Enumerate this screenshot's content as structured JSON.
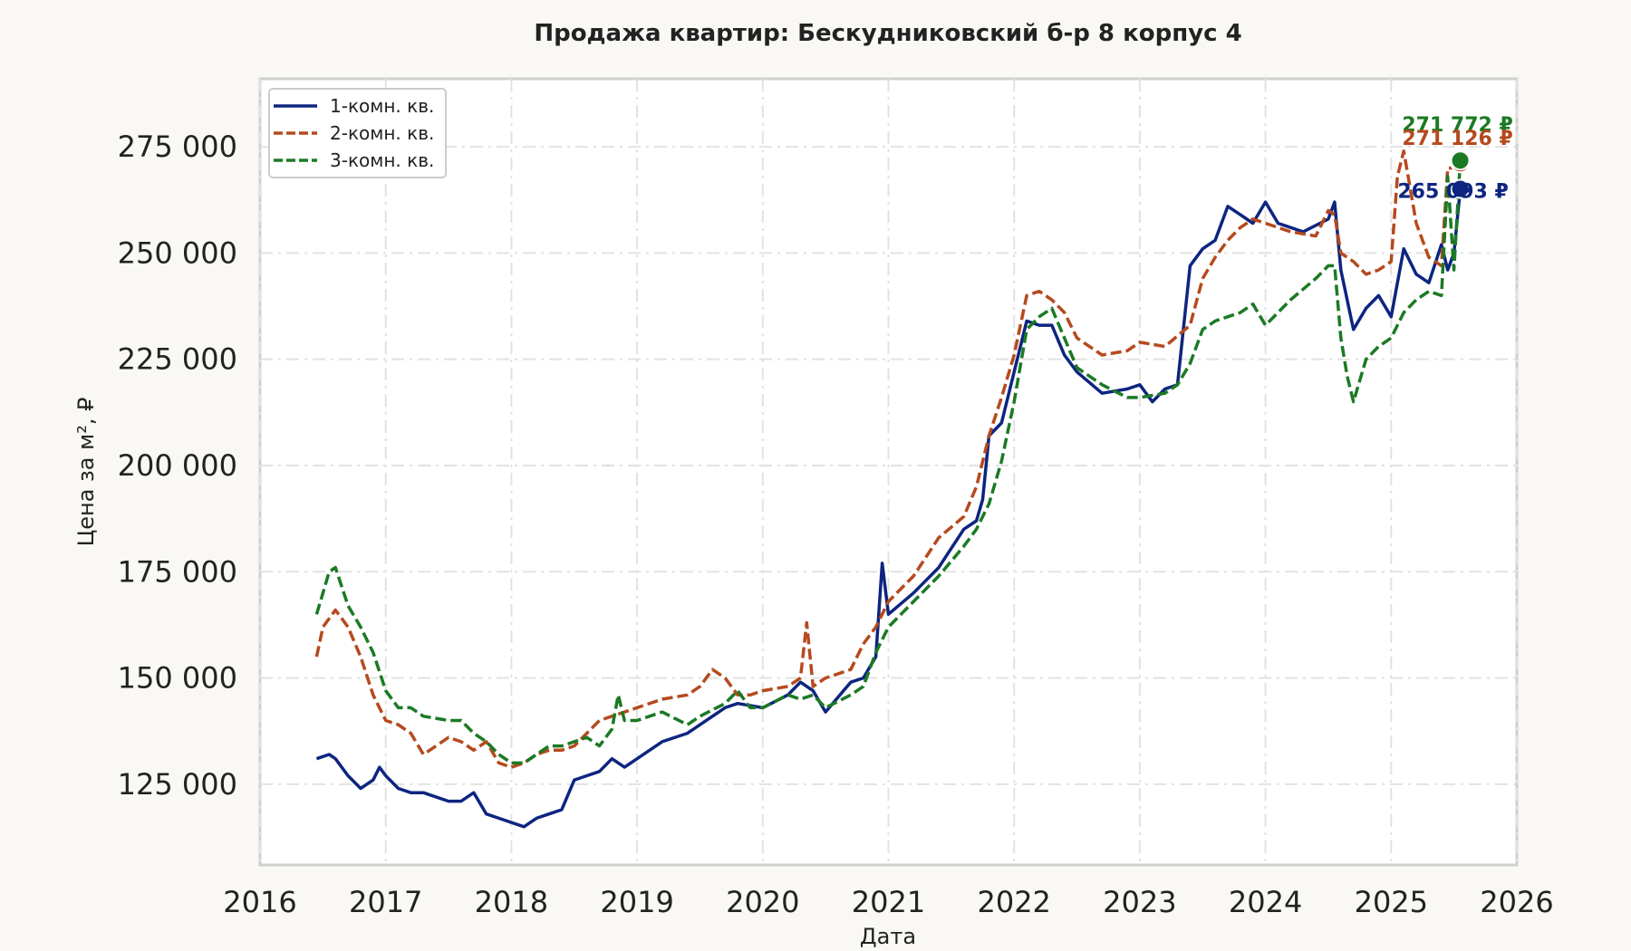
{
  "chart_data": {
    "type": "line",
    "title": "Продажа квартир: Бескудниковский б-р 8 корпус 4",
    "xlabel": "Дата",
    "ylabel": "Цена за м², ₽",
    "xlim": [
      2016,
      2026
    ],
    "ylim": [
      106000,
      291000
    ],
    "x_ticks": [
      "2016",
      "2017",
      "2018",
      "2019",
      "2020",
      "2021",
      "2022",
      "2023",
      "2024",
      "2025",
      "2026"
    ],
    "y_ticks": [
      {
        "value": 125000,
        "label": "125 000"
      },
      {
        "value": 150000,
        "label": "150 000"
      },
      {
        "value": 175000,
        "label": "175 000"
      },
      {
        "value": 200000,
        "label": "200 000"
      },
      {
        "value": 225000,
        "label": "225 000"
      },
      {
        "value": 250000,
        "label": "250 000"
      },
      {
        "value": 275000,
        "label": "275 000"
      }
    ],
    "grid": true,
    "legend_position": "top-left",
    "series": [
      {
        "name": "1-комн. кв.",
        "color": "#0d2580",
        "dash": "solid",
        "x": [
          2016.45,
          2016.55,
          2016.6,
          2016.7,
          2016.8,
          2016.9,
          2016.95,
          2017.0,
          2017.1,
          2017.2,
          2017.3,
          2017.5,
          2017.6,
          2017.7,
          2017.8,
          2017.9,
          2018.0,
          2018.1,
          2018.2,
          2018.3,
          2018.4,
          2018.5,
          2018.6,
          2018.7,
          2018.8,
          2018.9,
          2019.0,
          2019.2,
          2019.4,
          2019.5,
          2019.7,
          2019.8,
          2020.0,
          2020.2,
          2020.3,
          2020.4,
          2020.5,
          2020.7,
          2020.8,
          2020.9,
          2020.95,
          2021.0,
          2021.2,
          2021.4,
          2021.6,
          2021.7,
          2021.75,
          2021.8,
          2021.9,
          2022.0,
          2022.1,
          2022.2,
          2022.3,
          2022.4,
          2022.5,
          2022.7,
          2022.9,
          2023.0,
          2023.1,
          2023.2,
          2023.3,
          2023.4,
          2023.5,
          2023.6,
          2023.7,
          2023.8,
          2023.9,
          2024.0,
          2024.1,
          2024.3,
          2024.5,
          2024.55,
          2024.6,
          2024.7,
          2024.8,
          2024.9,
          2025.0,
          2025.1,
          2025.2,
          2025.3,
          2025.4,
          2025.45,
          2025.5,
          2025.55
        ],
        "y": [
          131000,
          132000,
          131000,
          127000,
          124000,
          126000,
          129000,
          127000,
          124000,
          123000,
          123000,
          121000,
          121000,
          123000,
          118000,
          117000,
          116000,
          115000,
          117000,
          118000,
          119000,
          126000,
          127000,
          128000,
          131000,
          129000,
          131000,
          135000,
          137000,
          139000,
          143000,
          144000,
          143000,
          146000,
          149000,
          147000,
          142000,
          149000,
          150000,
          155000,
          177000,
          165000,
          170000,
          176000,
          185000,
          187000,
          192000,
          207000,
          210000,
          222000,
          234000,
          233000,
          233000,
          226000,
          222000,
          217000,
          218000,
          219000,
          215000,
          218000,
          219000,
          247000,
          251000,
          253000,
          261000,
          259000,
          257000,
          262000,
          257000,
          255000,
          258000,
          262000,
          246000,
          232000,
          237000,
          240000,
          235000,
          251000,
          245000,
          243000,
          252000,
          246000,
          250000,
          265093
        ]
      },
      {
        "name": "2-комн. кв.",
        "color": "#b54a1e",
        "dash": "dashed",
        "x": [
          2016.45,
          2016.5,
          2016.6,
          2016.7,
          2016.8,
          2016.9,
          2017.0,
          2017.1,
          2017.2,
          2017.3,
          2017.4,
          2017.5,
          2017.6,
          2017.7,
          2017.8,
          2017.9,
          2018.0,
          2018.1,
          2018.2,
          2018.3,
          2018.4,
          2018.5,
          2018.6,
          2018.7,
          2018.8,
          2018.9,
          2019.0,
          2019.2,
          2019.4,
          2019.5,
          2019.6,
          2019.7,
          2019.8,
          2019.9,
          2020.0,
          2020.2,
          2020.3,
          2020.35,
          2020.4,
          2020.5,
          2020.7,
          2020.8,
          2020.9,
          2021.0,
          2021.2,
          2021.4,
          2021.6,
          2021.7,
          2021.8,
          2021.9,
          2022.0,
          2022.1,
          2022.2,
          2022.3,
          2022.4,
          2022.5,
          2022.7,
          2022.9,
          2023.0,
          2023.2,
          2023.4,
          2023.5,
          2023.6,
          2023.7,
          2023.8,
          2023.9,
          2024.0,
          2024.2,
          2024.4,
          2024.5,
          2024.55,
          2024.6,
          2024.7,
          2024.8,
          2024.9,
          2025.0,
          2025.05,
          2025.1,
          2025.2,
          2025.3,
          2025.4,
          2025.45,
          2025.5,
          2025.55
        ],
        "y": [
          155000,
          162000,
          166000,
          162000,
          155000,
          146000,
          140000,
          139000,
          137000,
          132000,
          134000,
          136000,
          135000,
          133000,
          135000,
          130000,
          129000,
          130000,
          132000,
          133000,
          133000,
          134000,
          137000,
          140000,
          141000,
          142000,
          143000,
          145000,
          146000,
          148000,
          152000,
          150000,
          146000,
          146000,
          147000,
          148000,
          150000,
          163000,
          148000,
          150000,
          152000,
          158000,
          162000,
          168000,
          174000,
          183000,
          188000,
          195000,
          207000,
          216000,
          226000,
          240000,
          241000,
          239000,
          236000,
          230000,
          226000,
          227000,
          229000,
          228000,
          233000,
          244000,
          249000,
          253000,
          256000,
          258000,
          257000,
          255000,
          254000,
          260000,
          259000,
          250000,
          248000,
          245000,
          246000,
          248000,
          268000,
          274000,
          257000,
          249000,
          247000,
          270000,
          270000,
          271126
        ]
      },
      {
        "name": "3-комн. кв.",
        "color": "#1b7a24",
        "dash": "dashed",
        "x": [
          2016.45,
          2016.5,
          2016.55,
          2016.6,
          2016.7,
          2016.8,
          2016.9,
          2017.0,
          2017.1,
          2017.2,
          2017.3,
          2017.5,
          2017.6,
          2017.7,
          2017.8,
          2017.9,
          2018.0,
          2018.1,
          2018.2,
          2018.3,
          2018.4,
          2018.5,
          2018.6,
          2018.7,
          2018.8,
          2018.85,
          2018.9,
          2019.0,
          2019.2,
          2019.4,
          2019.5,
          2019.7,
          2019.8,
          2019.9,
          2020.0,
          2020.2,
          2020.3,
          2020.4,
          2020.5,
          2020.7,
          2020.8,
          2020.9,
          2021.0,
          2021.2,
          2021.4,
          2021.6,
          2021.7,
          2021.8,
          2021.9,
          2022.0,
          2022.1,
          2022.2,
          2022.3,
          2022.4,
          2022.5,
          2022.7,
          2022.9,
          2023.0,
          2023.2,
          2023.3,
          2023.4,
          2023.5,
          2023.6,
          2023.8,
          2023.9,
          2024.0,
          2024.2,
          2024.4,
          2024.5,
          2024.55,
          2024.6,
          2024.65,
          2024.7,
          2024.8,
          2024.9,
          2025.0,
          2025.1,
          2025.2,
          2025.3,
          2025.4,
          2025.45,
          2025.5,
          2025.55
        ],
        "y": [
          165000,
          170000,
          175000,
          176000,
          167000,
          162000,
          156000,
          147000,
          143000,
          143000,
          141000,
          140000,
          140000,
          137000,
          135000,
          132000,
          130000,
          130000,
          132000,
          134000,
          134000,
          135000,
          136000,
          134000,
          138000,
          146000,
          140000,
          140000,
          142000,
          139000,
          141000,
          144000,
          147000,
          143000,
          143000,
          146000,
          145000,
          146000,
          143000,
          146000,
          148000,
          156000,
          162000,
          168000,
          174000,
          181000,
          185000,
          191000,
          201000,
          215000,
          232000,
          235000,
          237000,
          230000,
          223000,
          219000,
          216000,
          216000,
          217000,
          219000,
          224000,
          232000,
          234000,
          236000,
          238000,
          233000,
          239000,
          244000,
          247000,
          247000,
          230000,
          221000,
          215000,
          225000,
          228000,
          230000,
          236000,
          239000,
          241000,
          240000,
          268000,
          246000,
          271772
        ]
      }
    ],
    "end_labels": [
      {
        "series": 2,
        "text": "271 772 ₽",
        "color": "#1b7a24"
      },
      {
        "series": 1,
        "text": "271 126 ₽",
        "color": "#b54a1e"
      },
      {
        "series": 0,
        "text": "265 093 ₽",
        "color": "#0d2580"
      }
    ]
  }
}
